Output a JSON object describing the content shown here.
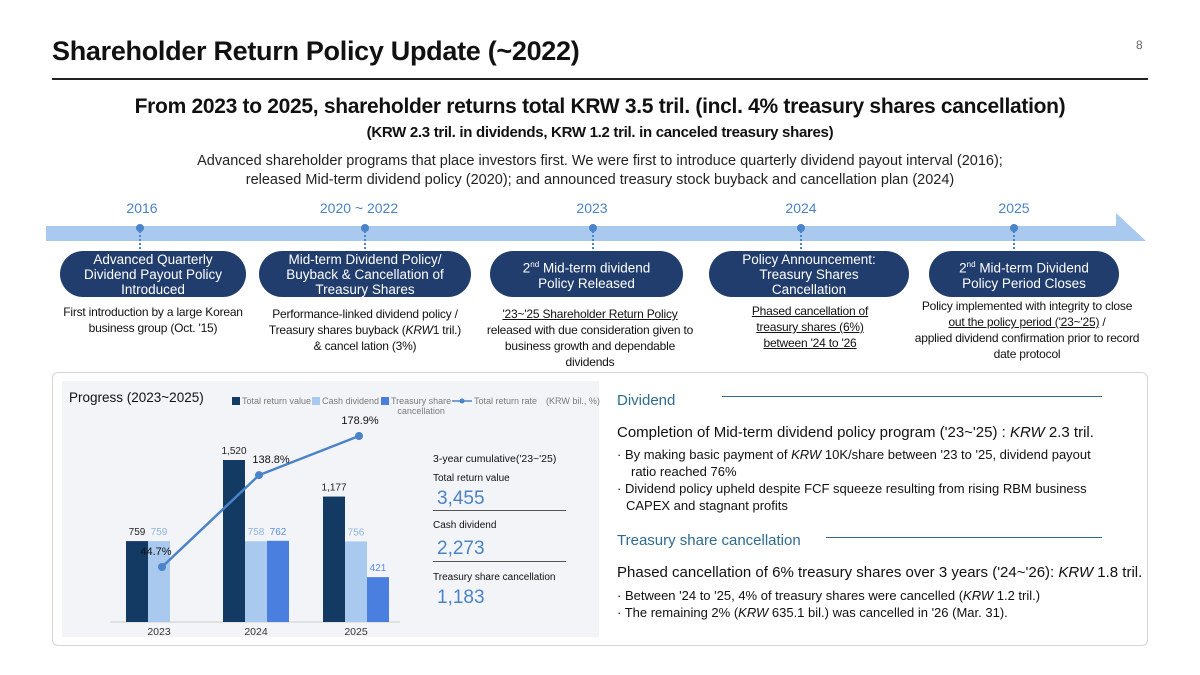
{
  "page": {
    "title": "Shareholder Return Policy Update (~2022)",
    "page_number": "8",
    "headline": "From 2023 to 2025, shareholder returns total KRW 3.5 tril. (incl. 4% treasury shares cancellation)",
    "subheadline": "(KRW 2.3 tril. in dividends, KRW 1.2 tril. in canceled treasury shares)",
    "intro_line1": "Advanced shareholder programs that place investors first. We were first to introduce quarterly dividend payout interval (2016);",
    "intro_line2": "released Mid-term dividend policy (2020); and announced treasury stock buyback and cancellation plan (2024)"
  },
  "colors": {
    "navy_pill": "#203d6d",
    "accent_blue": "#4a83c8",
    "arrow_blue": "#a9c9ee",
    "bar_total": "#123a63",
    "bar_cash": "#a9c9ee",
    "bar_treasury": "#4a7fe0",
    "section_teal": "#2f6b8f"
  },
  "timeline": [
    {
      "year": "2016",
      "pill": [
        "Advanced Quarterly",
        "Dividend Payout  Policy",
        "Introduced"
      ],
      "desc": [
        "First introduction by a large Korean",
        "business group (Oct. '15)"
      ]
    },
    {
      "year": "2020 ~ 2022",
      "pill": [
        "Mid-term Dividend Policy/",
        "Buyback & Cancellation of",
        "Treasury Shares"
      ],
      "desc_a": "Performance-linked dividend policy /",
      "desc_b1": "Treasury shares buyback (",
      "desc_b2": "KRW",
      "desc_b3": "1 tril.)",
      "desc_c": "& cancel lation (3%)"
    },
    {
      "year": "2023",
      "pill_sup": "nd",
      "pill_a": "2",
      "pill_b": " Mid-term dividend",
      "pill_c": "Policy Released",
      "desc_u": "'23~'25 Shareholder Return Policy",
      "desc": [
        "released with due consideration given to",
        "business growth and dependable",
        "dividends"
      ]
    },
    {
      "year": "2024",
      "pill": [
        "Policy Announcement:",
        "Treasury Shares",
        "Cancellation"
      ],
      "desc": [
        " Phased cancellation of",
        "treasury shares (6%)",
        "between '24 to '26"
      ]
    },
    {
      "year": "2025",
      "pill_sup": "nd",
      "pill_a": "2",
      "pill_b": " Mid-term Dividend",
      "pill_c": "Policy Period Closes",
      "desc_line1": "Policy implemented with integrity  to close",
      "desc_line2u": "out the policy period ('23~'25)",
      "desc_line2": " /",
      "desc_line3": "applied dividend confirmation prior to record",
      "desc_line4": "date protocol"
    }
  ],
  "chart_section": {
    "title": "Progress (2023~2025)",
    "legend": {
      "total": "Total return value",
      "cash": "Cash dividend",
      "treasury_1": "Treasury share",
      "treasury_2": "cancellation",
      "rate": "Total return rate",
      "unit": "(KRW bil., %)"
    },
    "cumulative": {
      "title": "3-year cumulative('23~'25)",
      "items": [
        {
          "label": "Total return value",
          "value": "3,455"
        },
        {
          "label": "Cash dividend",
          "value": "2,273"
        },
        {
          "label": "Treasury share cancellation",
          "value": "1,183"
        }
      ]
    }
  },
  "chart_data": {
    "type": "bar",
    "categories": [
      "2023",
      "2024",
      "2025"
    ],
    "series": [
      {
        "name": "Total return value",
        "values": [
          759,
          1520,
          1177
        ]
      },
      {
        "name": "Cash dividend",
        "values": [
          759,
          758,
          756
        ]
      },
      {
        "name": "Treasury share cancellation",
        "values": [
          0,
          762,
          421
        ]
      }
    ],
    "line_series": {
      "name": "Total return rate",
      "values": [
        44.7,
        138.8,
        178.9
      ],
      "labels": [
        "44.7%",
        "138.8%",
        "178.9%"
      ]
    },
    "value_labels": {
      "total": [
        "759",
        "1,520",
        "1,177"
      ],
      "cash": [
        "759",
        "758",
        "756"
      ],
      "treasury": [
        "",
        "762",
        "421"
      ]
    },
    "unit": "(KRW bil., %)",
    "ylim": [
      0,
      1600
    ]
  },
  "dividend": {
    "title": "Dividend",
    "head_pre": "Completion of Mid-term dividend policy program ('23~'25) : ",
    "head_krw": "KRW",
    "head_post": " 2.3 tril.",
    "b1_pre": "· By making basic payment of ",
    "b1_krw": "KRW",
    "b1_post": " 10K/share between '23 to '25, dividend payout",
    "b1_cont": "ratio reached 76%",
    "b2_line1": "· Dividend policy upheld despite FCF squeeze resulting from rising RBM business",
    "b2_line2": "CAPEX and stagnant profits"
  },
  "treasury": {
    "title": "Treasury share cancellation",
    "head_pre": "Phased cancellation of 6% treasury shares over 3 years ('24~'26): ",
    "head_krw": "KRW",
    "head_post": " 1.8 tril.",
    "b1_pre": "· Between '24 to '25, 4% of treasury shares were cancelled (",
    "b1_krw": "KRW",
    "b1_post": " 1.2 tril.)",
    "b2_pre": "· The remaining 2% (",
    "b2_krw": "KRW",
    "b2_post": " 635.1 bil.) was cancelled in '26 (Mar. 31)."
  }
}
